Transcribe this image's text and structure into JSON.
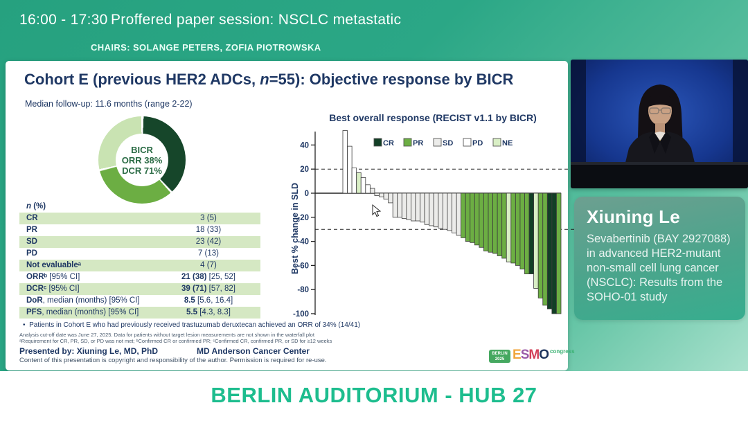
{
  "session_bar": {
    "time": "16:00 - 17:30",
    "title": "Proffered paper session: NSCLC metastatic",
    "chairs": "CHAIRS: SOLANGE PETERS, ZOFIA PIOTROWSKA"
  },
  "slide": {
    "title": {
      "prefix": "Cohort E (previous HER2 ADCs, ",
      "n_italic": "n",
      "suffix": "=55): Objective response by BICR"
    },
    "subtitle": "Median follow-up: 11.6 months (range 2-22)",
    "table": {
      "header": {
        "n_italic": "n",
        "rest": " (%)"
      },
      "rows": [
        {
          "label": [
            [
              "CR",
              1
            ]
          ],
          "value": [
            [
              "3 (5)",
              0
            ]
          ],
          "shaded": true
        },
        {
          "label": [
            [
              "PR",
              1
            ]
          ],
          "value": [
            [
              "18 (33)",
              0
            ]
          ],
          "shaded": false
        },
        {
          "label": [
            [
              "SD",
              1
            ]
          ],
          "value": [
            [
              "23 (42)",
              0
            ]
          ],
          "shaded": true
        },
        {
          "label": [
            [
              "PD",
              1
            ]
          ],
          "value": [
            [
              "7 (13)",
              0
            ]
          ],
          "shaded": false
        },
        {
          "label": [
            [
              "Not evaluableᵃ",
              1
            ]
          ],
          "value": [
            [
              "4 (7)",
              0
            ]
          ],
          "shaded": true
        },
        {
          "label": [
            [
              "ORRᵇ",
              1
            ],
            [
              " [95% CI]",
              0
            ]
          ],
          "value": [
            [
              "21 (38)",
              1
            ],
            [
              " [25, 52]",
              0
            ]
          ],
          "shaded": false
        },
        {
          "label": [
            [
              "DCRᶜ",
              1
            ],
            [
              " [95% CI]",
              0
            ]
          ],
          "value": [
            [
              "39 (71)",
              1
            ],
            [
              " [57, 82]",
              0
            ]
          ],
          "shaded": true
        },
        {
          "label": [
            [
              "DoR",
              1
            ],
            [
              ", median (months) [95% CI]",
              0
            ]
          ],
          "value": [
            [
              "8.5",
              1
            ],
            [
              " [5.6, 16.4]",
              0
            ]
          ],
          "shaded": false
        },
        {
          "label": [
            [
              "PFS",
              1
            ],
            [
              ", median (months) [95% CI]",
              0
            ]
          ],
          "value": [
            [
              "5.5",
              1
            ],
            [
              " [4.3, 8.3]",
              0
            ]
          ],
          "shaded": true
        }
      ]
    },
    "footnote_bullet": "Patients in Cohort E who had previously received trastuzumab deruxtecan achieved an ORR of 34% (14/41)",
    "footnote_small_1": "Analysis cut-off date was June 27, 2025. Data for patients without target lesion measurements are not shown in the waterfall plot",
    "footnote_small_2": "ᵃRequirement for CR, PR, SD, or PD was not met; ᵇConfirmed CR or confirmed PR; ᶜConfirmed CR, confirmed PR, or SD for ≥12 weeks",
    "presented_by": "Presented by: Xiuning Le, MD, PhD",
    "institution": "MD Anderson Cancer Center",
    "copyright": "Content of this presentation is copyright and responsibility of the author. Permission is required for re-use.",
    "logo": {
      "badge_line1": "BERLIN",
      "badge_line2": "2025",
      "letters": [
        {
          "ch": "E",
          "color": "#f0a63c"
        },
        {
          "ch": "S",
          "color": "#9c5ba8"
        },
        {
          "ch": "M",
          "color": "#d23f57"
        },
        {
          "ch": "O",
          "color": "#20355e"
        }
      ],
      "congress": "congress"
    }
  },
  "chart_data": [
    {
      "type": "pie",
      "subtype": "donut",
      "title": "BICR objective response donut",
      "center_labels": [
        "BICR",
        "ORR 38%",
        "DCR 71%"
      ],
      "slices": [
        {
          "label": "ORR (CR+PR)",
          "value": 38,
          "color": "#16462a"
        },
        {
          "label": "SD contributing to DCR",
          "value": 33,
          "color": "#6cae43"
        },
        {
          "label": "No disease control",
          "value": 29,
          "color": "#c9e3b2"
        }
      ]
    },
    {
      "type": "bar",
      "subtype": "waterfall",
      "title": "Best overall response (RECIST v1.1 by BICR)",
      "ylabel": "Best % change in SLD",
      "yticks": [
        40,
        20,
        0,
        -20,
        -40,
        -60,
        -80,
        -100
      ],
      "ylim": [
        -102,
        55
      ],
      "reference_lines": [
        20,
        -30
      ],
      "legend": [
        "CR",
        "PR",
        "SD",
        "PD",
        "NE"
      ],
      "colors": {
        "CR": "#123f26",
        "PR": "#6cae43",
        "SD": "#ececea",
        "PD": "#ffffff",
        "NE": "#d9efc5"
      },
      "bars": [
        {
          "v": 52,
          "r": "PD"
        },
        {
          "v": 39,
          "r": "PD"
        },
        {
          "v": 21,
          "r": "PD"
        },
        {
          "v": 17,
          "r": "NE"
        },
        {
          "v": 13,
          "r": "PD"
        },
        {
          "v": 7,
          "r": "PD"
        },
        {
          "v": 4,
          "r": "SD"
        },
        {
          "v": -2,
          "r": "SD"
        },
        {
          "v": -3,
          "r": "SD"
        },
        {
          "v": -5,
          "r": "SD"
        },
        {
          "v": -8,
          "r": "SD"
        },
        {
          "v": -20,
          "r": "SD"
        },
        {
          "v": -20,
          "r": "SD"
        },
        {
          "v": -21,
          "r": "SD"
        },
        {
          "v": -22,
          "r": "SD"
        },
        {
          "v": -23,
          "r": "SD"
        },
        {
          "v": -23,
          "r": "SD"
        },
        {
          "v": -24,
          "r": "SD"
        },
        {
          "v": -26,
          "r": "SD"
        },
        {
          "v": -27,
          "r": "SD"
        },
        {
          "v": -28,
          "r": "SD"
        },
        {
          "v": -29,
          "r": "SD"
        },
        {
          "v": -30,
          "r": "SD"
        },
        {
          "v": -31,
          "r": "SD"
        },
        {
          "v": -33,
          "r": "SD"
        },
        {
          "v": -35,
          "r": "SD"
        },
        {
          "v": -37,
          "r": "PR"
        },
        {
          "v": -40,
          "r": "PR"
        },
        {
          "v": -41,
          "r": "PR"
        },
        {
          "v": -43,
          "r": "PR"
        },
        {
          "v": -45,
          "r": "PR"
        },
        {
          "v": -48,
          "r": "PR"
        },
        {
          "v": -49,
          "r": "PR"
        },
        {
          "v": -50,
          "r": "PR"
        },
        {
          "v": -52,
          "r": "PR"
        },
        {
          "v": -54,
          "r": "PR"
        },
        {
          "v": -57,
          "r": "NE"
        },
        {
          "v": -58,
          "r": "PR"
        },
        {
          "v": -60,
          "r": "PR"
        },
        {
          "v": -63,
          "r": "PR"
        },
        {
          "v": -67,
          "r": "PR"
        },
        {
          "v": -67,
          "r": "CR"
        },
        {
          "v": -79,
          "r": "NE"
        },
        {
          "v": -87,
          "r": "PR"
        },
        {
          "v": -93,
          "r": "PR"
        },
        {
          "v": -96,
          "r": "CR"
        },
        {
          "v": -100,
          "r": "CR"
        },
        {
          "v": -100,
          "r": "PR"
        }
      ]
    }
  ],
  "speaker_panel": {
    "name": "Xiuning Le",
    "talk_title": "Sevabertinib (BAY 2927088) in advanced HER2-mutant non-small cell lung cancer (NSCLC): Results from the SOHO-01 study"
  },
  "footer": {
    "location": "BERLIN AUDITORIUM - HUB 27"
  }
}
